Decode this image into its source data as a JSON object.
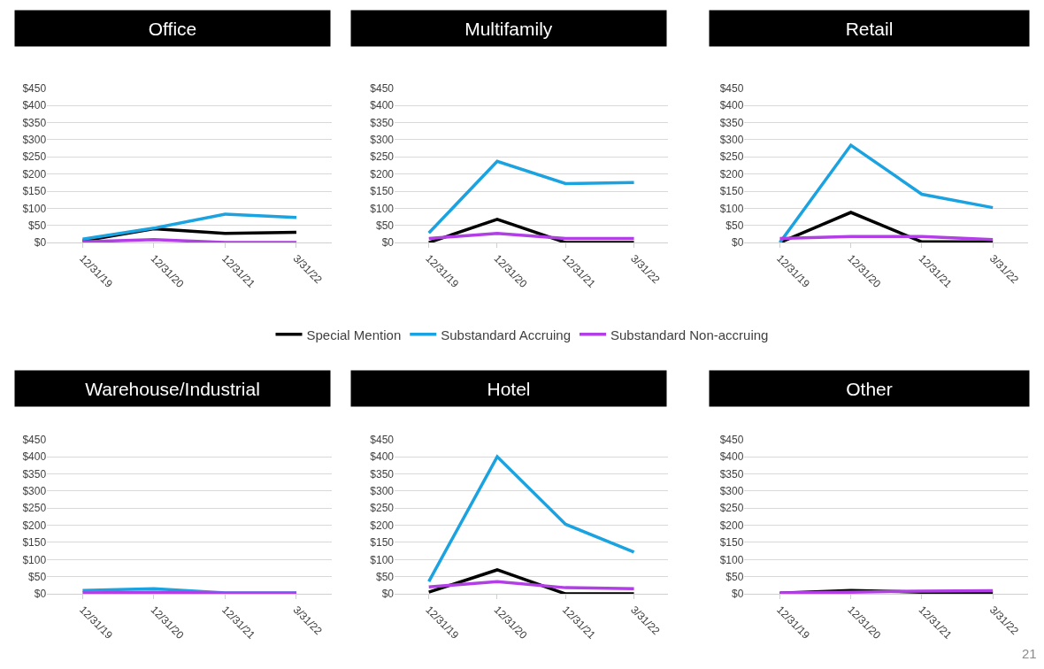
{
  "chart_data": [
    {
      "type": "line",
      "title": "Office",
      "categories": [
        "12/31/19",
        "12/31/20",
        "12/31/21",
        "3/31/22"
      ],
      "ylim": [
        0,
        450
      ],
      "yticks": [
        {
          "value": 0,
          "label": "$0"
        },
        {
          "value": 50,
          "label": "$50"
        },
        {
          "value": 100,
          "label": "$100"
        },
        {
          "value": 150,
          "label": "$150"
        },
        {
          "value": 200,
          "label": "$200"
        },
        {
          "value": 250,
          "label": "$250"
        },
        {
          "value": 300,
          "label": "$300"
        },
        {
          "value": 350,
          "label": "$350"
        },
        {
          "value": 400,
          "label": "$400"
        },
        {
          "value": 450,
          "label": "$450"
        }
      ],
      "grid": "y",
      "legend": false,
      "series": [
        {
          "color": "#000000",
          "values": [
            5,
            40,
            27,
            30
          ]
        },
        {
          "color": "#1aa3e0",
          "values": [
            10,
            42,
            83,
            73
          ]
        },
        {
          "color": "#b23ee6",
          "values": [
            2,
            9,
            0,
            0
          ]
        }
      ]
    },
    {
      "type": "line",
      "title": "Multifamily",
      "categories": [
        "12/31/19",
        "12/31/20",
        "12/31/21",
        "3/31/22"
      ],
      "ylim": [
        0,
        450
      ],
      "yticks": [
        {
          "value": 0,
          "label": "$0"
        },
        {
          "value": 50,
          "label": "$50"
        },
        {
          "value": 100,
          "label": "$100"
        },
        {
          "value": 150,
          "label": "$150"
        },
        {
          "value": 200,
          "label": "$200"
        },
        {
          "value": 250,
          "label": "$250"
        },
        {
          "value": 300,
          "label": "$300"
        },
        {
          "value": 350,
          "label": "$350"
        },
        {
          "value": 400,
          "label": "$400"
        },
        {
          "value": 450,
          "label": "$450"
        }
      ],
      "grid": "y",
      "legend": "bottom",
      "series": [
        {
          "name": "Special Mention",
          "color": "#000000",
          "values": [
            0,
            68,
            0,
            0
          ]
        },
        {
          "name": "Substandard Accruing",
          "color": "#1aa3e0",
          "values": [
            28,
            237,
            172,
            175
          ]
        },
        {
          "name": "Substandard Non-accruing",
          "color": "#b23ee6",
          "values": [
            12,
            27,
            12,
            12
          ]
        }
      ]
    },
    {
      "type": "line",
      "title": "Retail",
      "categories": [
        "12/31/19",
        "12/31/20",
        "12/31/21",
        "3/31/22"
      ],
      "ylim": [
        0,
        450
      ],
      "yticks": [
        {
          "value": 0,
          "label": "$0"
        },
        {
          "value": 50,
          "label": "$50"
        },
        {
          "value": 100,
          "label": "$100"
        },
        {
          "value": 150,
          "label": "$150"
        },
        {
          "value": 200,
          "label": "$200"
        },
        {
          "value": 250,
          "label": "$250"
        },
        {
          "value": 300,
          "label": "$300"
        },
        {
          "value": 350,
          "label": "$350"
        },
        {
          "value": 400,
          "label": "$400"
        },
        {
          "value": 450,
          "label": "$450"
        }
      ],
      "grid": "y",
      "legend": false,
      "series": [
        {
          "color": "#000000",
          "values": [
            0,
            88,
            2,
            2
          ]
        },
        {
          "color": "#1aa3e0",
          "values": [
            0,
            284,
            141,
            102
          ]
        },
        {
          "color": "#b23ee6",
          "values": [
            12,
            18,
            18,
            9
          ]
        }
      ]
    },
    {
      "type": "line",
      "title": "Warehouse/Industrial",
      "categories": [
        "12/31/19",
        "12/31/20",
        "12/31/21",
        "3/31/22"
      ],
      "ylim": [
        0,
        450
      ],
      "yticks": [
        {
          "value": 0,
          "label": "$0"
        },
        {
          "value": 50,
          "label": "$50"
        },
        {
          "value": 100,
          "label": "$100"
        },
        {
          "value": 150,
          "label": "$150"
        },
        {
          "value": 200,
          "label": "$200"
        },
        {
          "value": 250,
          "label": "$250"
        },
        {
          "value": 300,
          "label": "$300"
        },
        {
          "value": 350,
          "label": "$350"
        },
        {
          "value": 400,
          "label": "$400"
        },
        {
          "value": 450,
          "label": "$450"
        }
      ],
      "grid": "y",
      "legend": false,
      "series": [
        {
          "color": "#1aa3e0",
          "values": [
            10,
            15,
            3,
            3
          ]
        },
        {
          "color": "#b23ee6",
          "values": [
            3,
            5,
            2,
            2
          ]
        }
      ]
    },
    {
      "type": "line",
      "title": "Hotel",
      "categories": [
        "12/31/19",
        "12/31/20",
        "12/31/21",
        "3/31/22"
      ],
      "ylim": [
        0,
        450
      ],
      "yticks": [
        {
          "value": 0,
          "label": "$0"
        },
        {
          "value": 50,
          "label": "$50"
        },
        {
          "value": 100,
          "label": "$100"
        },
        {
          "value": 150,
          "label": "$150"
        },
        {
          "value": 200,
          "label": "$200"
        },
        {
          "value": 250,
          "label": "$250"
        },
        {
          "value": 300,
          "label": "$300"
        },
        {
          "value": 350,
          "label": "$350"
        },
        {
          "value": 400,
          "label": "$400"
        },
        {
          "value": 450,
          "label": "$450"
        }
      ],
      "grid": "y",
      "legend": false,
      "series": [
        {
          "color": "#000000",
          "values": [
            5,
            70,
            0,
            0
          ]
        },
        {
          "color": "#1aa3e0",
          "values": [
            36,
            400,
            203,
            122
          ]
        },
        {
          "color": "#b23ee6",
          "values": [
            20,
            36,
            18,
            15
          ]
        }
      ]
    },
    {
      "type": "line",
      "title": "Other",
      "categories": [
        "12/31/19",
        "12/31/20",
        "12/31/21",
        "3/31/22"
      ],
      "ylim": [
        0,
        450
      ],
      "yticks": [
        {
          "value": 0,
          "label": "$0"
        },
        {
          "value": 50,
          "label": "$50"
        },
        {
          "value": 100,
          "label": "$100"
        },
        {
          "value": 150,
          "label": "$150"
        },
        {
          "value": 200,
          "label": "$200"
        },
        {
          "value": 250,
          "label": "$250"
        },
        {
          "value": 300,
          "label": "$300"
        },
        {
          "value": 350,
          "label": "$350"
        },
        {
          "value": 400,
          "label": "$400"
        },
        {
          "value": 450,
          "label": "$450"
        }
      ],
      "grid": "y",
      "legend": false,
      "annotations": [
        "21"
      ],
      "series": [
        {
          "color": "#000000",
          "values": [
            2,
            10,
            5,
            2
          ]
        },
        {
          "color": "#b23ee6",
          "values": [
            3,
            5,
            8,
            9
          ]
        }
      ]
    }
  ]
}
